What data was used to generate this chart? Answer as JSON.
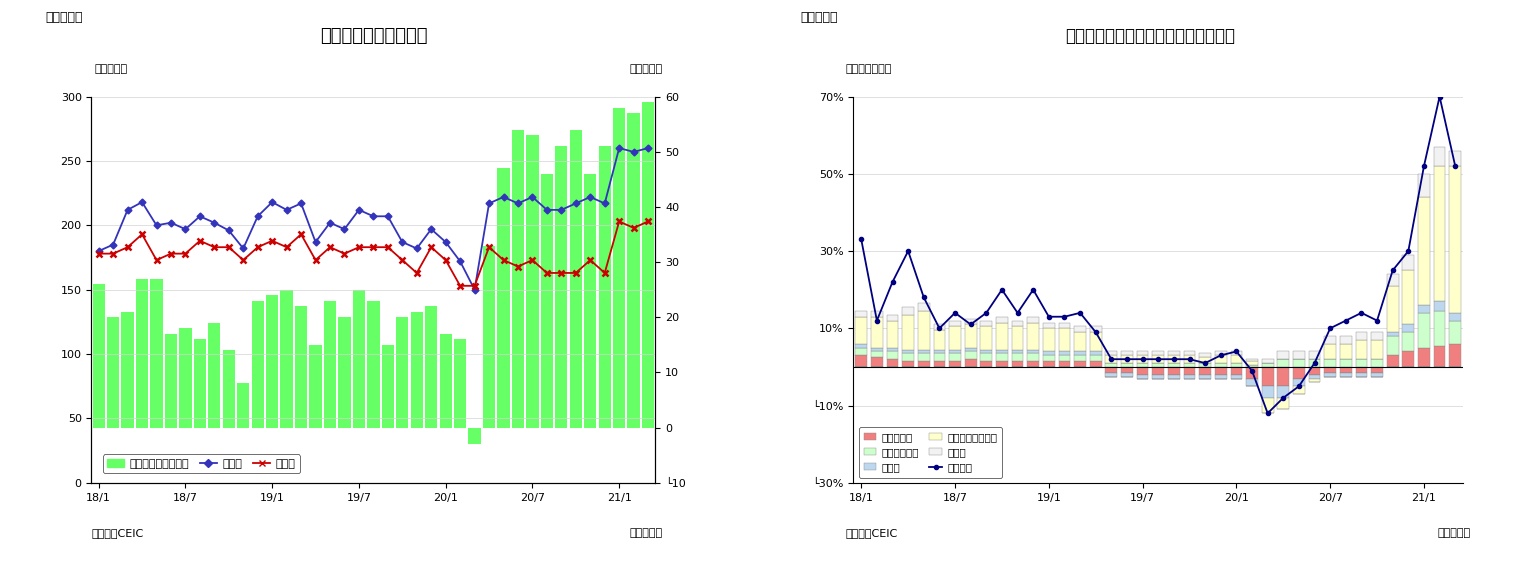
{
  "chart1": {
    "title": "マレーシア　貿易収支",
    "header": "（図表７）",
    "ylabel_left": "（億ドル）",
    "ylabel_right": "（億ドル）",
    "xlabel": "（年／月）",
    "source": "（資料）CEIC",
    "ylim_left": [
      0,
      300
    ],
    "ylim_right": [
      -10,
      60
    ],
    "yticks_left": [
      0,
      50,
      100,
      150,
      200,
      250,
      300
    ],
    "yticks_right": [
      -10,
      0,
      10,
      20,
      30,
      40,
      50,
      60
    ],
    "ytick_labels_right": [
      "└10",
      "0",
      "10",
      "20",
      "30",
      "40",
      "50",
      "60"
    ],
    "xtick_labels": [
      "18/1",
      "18/7",
      "19/1",
      "19/7",
      "20/1",
      "20/7",
      "21/1"
    ],
    "xtick_positions": [
      0,
      6,
      12,
      18,
      24,
      30,
      36
    ],
    "bar_color": "#66FF66",
    "line1_color": "#3333BB",
    "line2_color": "#CC0000",
    "legend_bar": "貿易収支（右目盛）",
    "legend_line1": "輸出額",
    "legend_line2": "輸入額",
    "trade_balance": [
      26,
      20,
      21,
      27,
      27,
      17,
      18,
      16,
      19,
      14,
      8,
      23,
      24,
      25,
      22,
      15,
      23,
      20,
      25,
      23,
      15,
      20,
      21,
      22,
      17,
      16,
      -3,
      33,
      47,
      54,
      53,
      46,
      51,
      54,
      46,
      51,
      58,
      57,
      59
    ],
    "exports": [
      180,
      185,
      212,
      218,
      200,
      202,
      197,
      207,
      202,
      196,
      182,
      207,
      218,
      212,
      217,
      187,
      202,
      197,
      212,
      207,
      207,
      187,
      182,
      197,
      187,
      172,
      150,
      217,
      222,
      217,
      222,
      212,
      212,
      217,
      222,
      217,
      260,
      257,
      260
    ],
    "imports": [
      178,
      178,
      183,
      193,
      173,
      178,
      178,
      188,
      183,
      183,
      173,
      183,
      188,
      183,
      193,
      173,
      183,
      178,
      183,
      183,
      183,
      173,
      163,
      183,
      173,
      153,
      153,
      183,
      173,
      168,
      173,
      163,
      163,
      163,
      173,
      163,
      203,
      198,
      203
    ]
  },
  "chart2": {
    "title": "マレーシア　輸出の伸び率（品目別）",
    "header": "（図表８）",
    "ylabel_left": "（前年同月比）",
    "xlabel": "（年／月）",
    "source": "（資料）CEIC",
    "ylim": [
      -30,
      70
    ],
    "yticks": [
      -30,
      -10,
      10,
      30,
      50,
      70
    ],
    "ytick_labels": [
      "└30%",
      "└10%",
      "10%",
      "30%",
      "50%",
      "70%"
    ],
    "xtick_labels": [
      "18/1",
      "18/7",
      "19/1",
      "19/7",
      "20/1",
      "20/7",
      "21/1"
    ],
    "xtick_positions": [
      0,
      6,
      12,
      18,
      24,
      30,
      36
    ],
    "mineral_fuel": [
      3.0,
      2.5,
      2.0,
      1.5,
      1.5,
      1.5,
      1.5,
      2.0,
      1.5,
      1.5,
      1.5,
      1.5,
      1.5,
      1.5,
      1.5,
      1.5,
      -1.5,
      -1.5,
      -2.0,
      -2.0,
      -2.0,
      -2.0,
      -2.0,
      -2.0,
      -2.0,
      -3.0,
      -5.0,
      -5.0,
      -3.0,
      -2.0,
      -1.5,
      -1.5,
      -1.5,
      -1.5,
      3.0,
      4.0,
      5.0,
      5.5,
      6.0
    ],
    "veg_oil": [
      2.0,
      1.5,
      2.0,
      2.0,
      2.0,
      2.0,
      2.0,
      2.0,
      2.0,
      2.0,
      2.0,
      2.0,
      1.5,
      1.5,
      1.5,
      1.5,
      1.0,
      1.0,
      1.0,
      1.0,
      1.0,
      1.0,
      1.0,
      1.0,
      1.0,
      0.5,
      1.0,
      2.0,
      2.0,
      2.0,
      2.0,
      2.0,
      2.0,
      2.0,
      5.0,
      5.0,
      9.0,
      9.0,
      6.0
    ],
    "manufactured": [
      1.0,
      1.0,
      1.0,
      1.0,
      1.0,
      1.0,
      1.0,
      1.0,
      1.0,
      1.0,
      1.0,
      1.0,
      1.0,
      1.0,
      1.0,
      1.0,
      -1.0,
      -1.0,
      -1.0,
      -1.0,
      -1.0,
      -1.0,
      -1.0,
      -1.0,
      -1.0,
      -2.0,
      -3.0,
      -3.0,
      -2.0,
      -1.0,
      -1.0,
      -1.0,
      -1.0,
      -1.0,
      1.0,
      2.0,
      2.0,
      2.5,
      2.0
    ],
    "machinery": [
      7.0,
      8.0,
      7.0,
      9.0,
      10.0,
      5.0,
      6.0,
      6.0,
      6.0,
      7.0,
      6.0,
      7.0,
      6.0,
      6.0,
      5.0,
      5.0,
      2.0,
      2.0,
      2.0,
      2.0,
      2.0,
      2.0,
      1.5,
      2.0,
      2.0,
      1.0,
      -4.0,
      -3.0,
      -2.0,
      -1.0,
      4.0,
      4.0,
      5.0,
      5.0,
      12.0,
      14.0,
      28.0,
      35.0,
      38.0
    ],
    "others": [
      1.5,
      1.5,
      1.5,
      2.0,
      2.0,
      1.5,
      1.5,
      1.5,
      1.5,
      1.5,
      1.5,
      1.5,
      1.5,
      1.5,
      1.5,
      1.5,
      1.0,
      1.0,
      1.0,
      1.0,
      1.0,
      1.0,
      1.0,
      1.0,
      1.0,
      0.5,
      1.0,
      2.0,
      2.0,
      2.0,
      2.0,
      2.0,
      2.0,
      2.0,
      3.0,
      4.0,
      6.0,
      5.0,
      4.0
    ],
    "total_exports": [
      33,
      12,
      22,
      30,
      18,
      10,
      14,
      11,
      14,
      20,
      14,
      20,
      13,
      13,
      14,
      9,
      2,
      2,
      2,
      2,
      2,
      2,
      1,
      3,
      4,
      -1,
      -12,
      -8,
      -5,
      1,
      10,
      12,
      14,
      12,
      25,
      30,
      52,
      70,
      52
    ],
    "colors": {
      "mineral_fuel": "#F08080",
      "veg_oil": "#CCFFCC",
      "manufactured": "#BDD7EE",
      "machinery": "#FFFFCC",
      "others": "#F2F2F2"
    },
    "line_color": "#000080",
    "legend_labels": [
      "鉱物性燃料",
      "動植物性油脂",
      "製造品",
      "機械・輸送用機器",
      "その他",
      "輸出合計"
    ]
  }
}
